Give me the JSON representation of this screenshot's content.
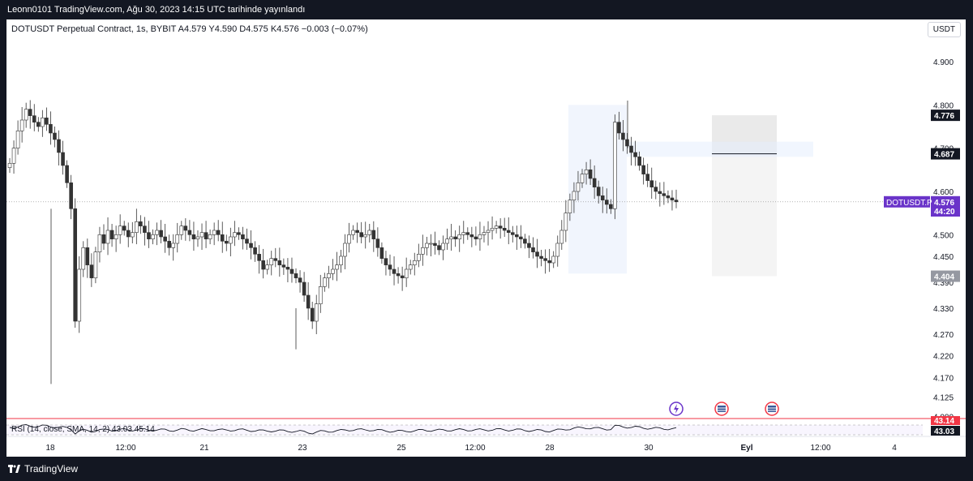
{
  "header": {
    "publish_text": "Leonn0101 TradingView.com, Ağu 30, 2023 14:15 UTC tarihinde yayınlandı"
  },
  "legend": {
    "symbol": "DOTUSDT Perpetual Contract, 1s, BYBIT",
    "open": "A4.579",
    "high": "Y4.590",
    "low": "D4.575",
    "close": "K4.576",
    "change": "−0.003 (−0.07%)"
  },
  "currency_button": "USDT",
  "footer": {
    "brand": "TradingView"
  },
  "colors": {
    "up": "#089981",
    "down": "#f23645",
    "accent": "#6a34c9",
    "rsi": "#131722"
  },
  "chart_data": {
    "type": "candlestick",
    "x_ticks": [
      {
        "label": "18",
        "t": 54
      },
      {
        "label": "12:00",
        "t": 147
      },
      {
        "label": "21",
        "t": 244
      },
      {
        "label": "23",
        "t": 365
      },
      {
        "label": "25",
        "t": 487
      },
      {
        "label": "12:00",
        "t": 578
      },
      {
        "label": "28",
        "t": 670
      },
      {
        "label": "30",
        "t": 792
      },
      {
        "label": "Eyl",
        "t": 913
      },
      {
        "label": "12:00",
        "t": 1004
      },
      {
        "label": "4",
        "t": 1095
      }
    ],
    "y_ticks": [
      "4.900",
      "4.800",
      "4.700",
      "4.600",
      "4.500",
      "4.450",
      "4.390",
      "4.330",
      "4.270",
      "4.220",
      "4.170",
      "4.125",
      "4.080"
    ],
    "price_labels": [
      {
        "text": "4.776",
        "value": 4.776,
        "style": "dark"
      },
      {
        "text": "4.687",
        "value": 4.687,
        "style": "dark"
      },
      {
        "text": "4.576",
        "value": 4.576,
        "style": "accent"
      },
      {
        "text": "44:20",
        "value": 4.555,
        "style": "accent-sub"
      },
      {
        "text": "4.404",
        "value": 4.404,
        "style": "grey"
      }
    ],
    "symbol_tag": "DOTUSDT.P",
    "last_price": 4.576,
    "candles_close": [
      4.665,
      4.7,
      4.74,
      4.765,
      4.79,
      4.775,
      4.76,
      4.75,
      4.77,
      4.755,
      4.735,
      4.72,
      4.69,
      4.66,
      4.62,
      4.56,
      4.3,
      4.42,
      4.47,
      4.43,
      4.4,
      4.46,
      4.5,
      4.48,
      4.51,
      4.49,
      4.5,
      4.52,
      4.51,
      4.495,
      4.505,
      4.53,
      4.52,
      4.505,
      4.49,
      4.5,
      4.51,
      4.495,
      4.485,
      4.47,
      4.48,
      4.5,
      4.52,
      4.51,
      4.5,
      4.49,
      4.495,
      4.505,
      4.49,
      4.5,
      4.51,
      4.5,
      4.485,
      4.48,
      4.495,
      4.505,
      4.5,
      4.49,
      4.48,
      4.47,
      4.455,
      4.44,
      4.42,
      4.43,
      4.445,
      4.44,
      4.43,
      4.425,
      4.42,
      4.41,
      4.4,
      4.39,
      4.36,
      4.33,
      4.3,
      4.34,
      4.38,
      4.4,
      4.41,
      4.42,
      4.43,
      4.45,
      4.48,
      4.5,
      4.51,
      4.505,
      4.495,
      4.5,
      4.51,
      4.49,
      4.47,
      4.445,
      4.43,
      4.42,
      4.41,
      4.405,
      4.4,
      4.42,
      4.43,
      4.44,
      4.455,
      4.47,
      4.48,
      4.48,
      4.475,
      4.465,
      4.48,
      4.49,
      4.495,
      4.49,
      4.5,
      4.505,
      4.5,
      4.495,
      4.49,
      4.5,
      4.505,
      4.51,
      4.515,
      4.52,
      4.515,
      4.51,
      4.505,
      4.5,
      4.495,
      4.49,
      4.48,
      4.47,
      4.46,
      4.45,
      4.445,
      4.44,
      4.435,
      4.45,
      4.48,
      4.51,
      4.55,
      4.58,
      4.6,
      4.62,
      4.64,
      4.65,
      4.63,
      4.61,
      4.59,
      4.58,
      4.57,
      4.56,
      4.76,
      4.735,
      4.72,
      4.705,
      4.69,
      4.68,
      4.66,
      4.64,
      4.625,
      4.61,
      4.6,
      4.595,
      4.59,
      4.585,
      4.58,
      4.576
    ],
    "rsi": {
      "label": "RSI (14, close, SMA, 14, 2)",
      "value": "43.03",
      "ma_value": "45.14",
      "axis_labels": [
        "43.14",
        "43.03"
      ]
    },
    "event_icons": [
      "lightning-icon",
      "us-flag-icon",
      "us-flag-icon"
    ]
  }
}
